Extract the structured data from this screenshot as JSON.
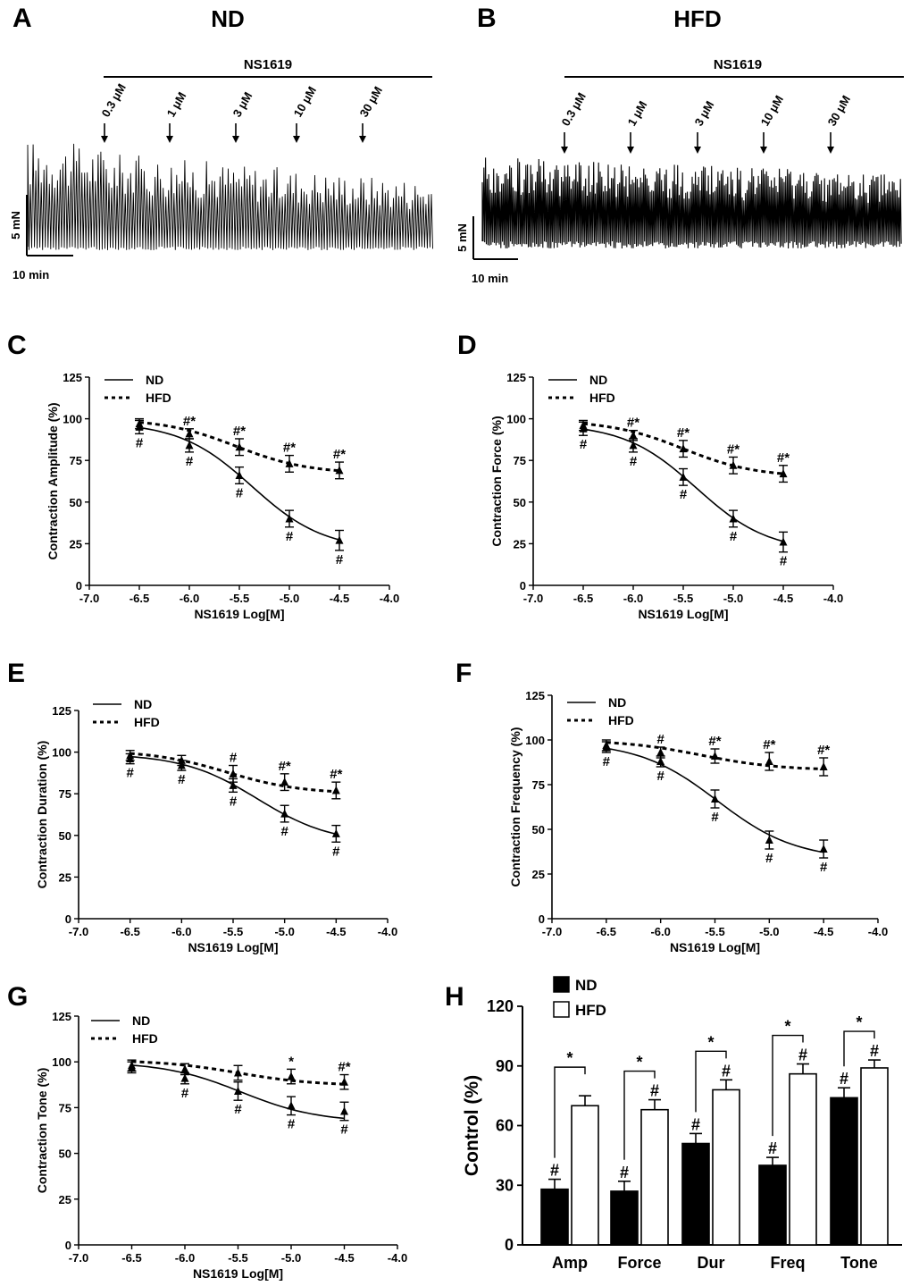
{
  "figure": {
    "panel_labels": [
      "A",
      "B",
      "C",
      "D",
      "E",
      "F",
      "G",
      "H"
    ]
  },
  "traces": [
    {
      "panel": "A",
      "title": "ND",
      "drug_label": "NS1619",
      "concentrations": [
        "0.3 μM",
        "1 μM",
        "3 μM",
        "10 μM",
        "30 μM"
      ],
      "scale_y": "5 mN",
      "scale_x": "10 min"
    },
    {
      "panel": "B",
      "title": "HFD",
      "drug_label": "NS1619",
      "concentrations": [
        "0.3 μM",
        "1 μM",
        "3 μM",
        "10 μM",
        "30 μM"
      ],
      "scale_y": "5 mN",
      "scale_x": "10 min"
    }
  ],
  "chart_data": [
    {
      "panel": "C",
      "type": "line",
      "xlabel": "NS1619 Log[M]",
      "ylabel": "Contraction Amplitude (%)",
      "xlim": [
        -7.0,
        -4.0
      ],
      "ylim": [
        0,
        125
      ],
      "xticks": [
        -7.0,
        -6.5,
        -6.0,
        -5.5,
        -5.0,
        -4.5,
        -4.0
      ],
      "xtick_labels": [
        "-7.0",
        "-6.5",
        "-6.0",
        "-5.5",
        "-5.0",
        "-4.5",
        "-4.0"
      ],
      "yticks": [
        0,
        25,
        50,
        75,
        100,
        125
      ],
      "ytick_labels": [
        "0",
        "25",
        "50",
        "75",
        "100",
        "125"
      ],
      "x": [
        -6.5,
        -6.0,
        -5.5,
        -5.0,
        -4.5
      ],
      "legend": [
        "ND",
        "HFD"
      ],
      "series": [
        {
          "name": "ND",
          "style": "solid",
          "values": [
            95,
            84,
            66,
            40,
            27
          ],
          "err": [
            4,
            4,
            5,
            5,
            6
          ],
          "labels": [
            "#",
            "#",
            "#",
            "#",
            "#"
          ],
          "label_pos": "below"
        },
        {
          "name": "HFD",
          "style": "dashed",
          "values": [
            97,
            91,
            83,
            73,
            69
          ],
          "err": [
            3,
            3,
            5,
            5,
            5
          ],
          "labels": [
            "",
            "#*",
            "#*",
            "#*",
            "#*"
          ],
          "label_pos": "above"
        }
      ]
    },
    {
      "panel": "D",
      "type": "line",
      "xlabel": "NS1619 Log[M]",
      "ylabel": "Contraction Force (%)",
      "xlim": [
        -7.0,
        -4.0
      ],
      "ylim": [
        0,
        125
      ],
      "xticks": [
        -7.0,
        -6.5,
        -6.0,
        -5.5,
        -5.0,
        -4.5,
        -4.0
      ],
      "xtick_labels": [
        "-7.0",
        "-6.5",
        "-6.0",
        "-5.5",
        "-5.0",
        "-4.5",
        "-4.0"
      ],
      "yticks": [
        0,
        25,
        50,
        75,
        100,
        125
      ],
      "ytick_labels": [
        "0",
        "25",
        "50",
        "75",
        "100",
        "125"
      ],
      "x": [
        -6.5,
        -6.0,
        -5.5,
        -5.0,
        -4.5
      ],
      "legend": [
        "ND",
        "HFD"
      ],
      "series": [
        {
          "name": "ND",
          "style": "solid",
          "values": [
            94,
            84,
            65,
            40,
            26
          ],
          "err": [
            4,
            4,
            5,
            5,
            6
          ],
          "labels": [
            "#",
            "#",
            "#",
            "#",
            "#"
          ],
          "label_pos": "below"
        },
        {
          "name": "HFD",
          "style": "dashed",
          "values": [
            96,
            90,
            82,
            72,
            67
          ],
          "err": [
            3,
            3,
            5,
            5,
            5
          ],
          "labels": [
            "",
            "#*",
            "#*",
            "#*",
            "#*"
          ],
          "label_pos": "above"
        }
      ]
    },
    {
      "panel": "E",
      "type": "line",
      "xlabel": "NS1619 Log[M]",
      "ylabel": "Contraction Duration (%)",
      "xlim": [
        -7.0,
        -4.0
      ],
      "ylim": [
        0,
        125
      ],
      "xticks": [
        -7.0,
        -6.5,
        -6.0,
        -5.5,
        -5.0,
        -4.5,
        -4.0
      ],
      "xtick_labels": [
        "-7.0",
        "-6.5",
        "-6.0",
        "-5.5",
        "-5.0",
        "-4.5",
        "-4.0"
      ],
      "yticks": [
        0,
        25,
        50,
        75,
        100,
        125
      ],
      "ytick_labels": [
        "0",
        "25",
        "50",
        "75",
        "100",
        "125"
      ],
      "x": [
        -6.5,
        -6.0,
        -5.5,
        -5.0,
        -4.5
      ],
      "legend": [
        "ND",
        "HFD"
      ],
      "series": [
        {
          "name": "ND",
          "style": "solid",
          "values": [
            96,
            92,
            80,
            63,
            51
          ],
          "err": [
            3,
            3,
            4,
            5,
            5
          ],
          "labels": [
            "#",
            "#",
            "#",
            "#",
            "#"
          ],
          "label_pos": "below"
        },
        {
          "name": "HFD",
          "style": "dashed",
          "values": [
            98,
            95,
            87,
            82,
            77
          ],
          "err": [
            3,
            3,
            5,
            5,
            5
          ],
          "labels": [
            "",
            "",
            "#",
            "#*",
            "#*"
          ],
          "label_pos": "above"
        }
      ]
    },
    {
      "panel": "F",
      "type": "line",
      "xlabel": "NS1619 Log[M]",
      "ylabel": "Contraction Frequency (%)",
      "xlim": [
        -7.0,
        -4.0
      ],
      "ylim": [
        0,
        125
      ],
      "xticks": [
        -7.0,
        -6.5,
        -6.0,
        -5.5,
        -5.0,
        -4.5,
        -4.0
      ],
      "xtick_labels": [
        "-7.0",
        "-6.5",
        "-6.0",
        "-5.5",
        "-5.0",
        "-4.5",
        "-4.0"
      ],
      "yticks": [
        0,
        25,
        50,
        75,
        100,
        125
      ],
      "ytick_labels": [
        "0",
        "25",
        "50",
        "75",
        "100",
        "125"
      ],
      "x": [
        -6.5,
        -6.0,
        -5.5,
        -5.0,
        -4.5
      ],
      "legend": [
        "ND",
        "HFD"
      ],
      "series": [
        {
          "name": "ND",
          "style": "solid",
          "values": [
            96,
            88,
            67,
            44,
            39
          ],
          "err": [
            3,
            3,
            5,
            5,
            5
          ],
          "labels": [
            "#",
            "#",
            "#",
            "#",
            "#"
          ],
          "label_pos": "below"
        },
        {
          "name": "HFD",
          "style": "dashed",
          "values": [
            97,
            93,
            91,
            88,
            85
          ],
          "err": [
            3,
            3,
            4,
            5,
            5
          ],
          "labels": [
            "",
            "#",
            "#*",
            "#*",
            "#*"
          ],
          "label_pos": "above"
        }
      ]
    },
    {
      "panel": "G",
      "type": "line",
      "xlabel": "NS1619 Log[M]",
      "ylabel": "Contraction Tone (%)",
      "xlim": [
        -7.0,
        -4.0
      ],
      "ylim": [
        0,
        125
      ],
      "xticks": [
        -7.0,
        -6.5,
        -6.0,
        -5.5,
        -5.0,
        -4.5,
        -4.0
      ],
      "xtick_labels": [
        "-7.0",
        "-6.5",
        "-6.0",
        "-5.5",
        "-5.0",
        "-4.5",
        "-4.0"
      ],
      "yticks": [
        0,
        25,
        50,
        75,
        100,
        125
      ],
      "ytick_labels": [
        "0",
        "25",
        "50",
        "75",
        "100",
        "125"
      ],
      "x": [
        -6.5,
        -6.0,
        -5.5,
        -5.0,
        -4.5
      ],
      "legend": [
        "ND",
        "HFD"
      ],
      "series": [
        {
          "name": "ND",
          "style": "solid",
          "values": [
            97,
            91,
            84,
            76,
            73
          ],
          "err": [
            3,
            3,
            5,
            5,
            5
          ],
          "labels": [
            "",
            "#",
            "#",
            "#",
            "#"
          ],
          "label_pos": "below"
        },
        {
          "name": "HFD",
          "style": "dashed",
          "values": [
            98,
            96,
            94,
            92,
            89
          ],
          "err": [
            3,
            3,
            4,
            4,
            4
          ],
          "labels": [
            "",
            "",
            "",
            "*",
            "#*"
          ],
          "label_pos": "above"
        }
      ]
    },
    {
      "panel": "H",
      "type": "bar",
      "ylabel": "Control (%)",
      "ylim": [
        0,
        120
      ],
      "yticks": [
        0,
        30,
        60,
        90,
        120
      ],
      "ytick_labels": [
        "0",
        "30",
        "60",
        "90",
        "120"
      ],
      "categories": [
        "Amp",
        "Force",
        "Dur",
        "Freq",
        "Tone"
      ],
      "legend": [
        "ND",
        "HFD"
      ],
      "series": [
        {
          "name": "ND",
          "color": "#000000",
          "values": [
            28,
            27,
            51,
            40,
            74
          ],
          "err": [
            5,
            5,
            5,
            4,
            5
          ],
          "labels": [
            "#",
            "#",
            "#",
            "#",
            "#"
          ]
        },
        {
          "name": "HFD",
          "color": "#ffffff",
          "values": [
            70,
            68,
            78,
            86,
            89
          ],
          "err": [
            5,
            5,
            5,
            5,
            4
          ],
          "labels": [
            "",
            "#",
            "#",
            "#",
            "#"
          ]
        }
      ],
      "comparison_labels": [
        "*",
        "*",
        "*",
        "*",
        "*"
      ]
    }
  ]
}
